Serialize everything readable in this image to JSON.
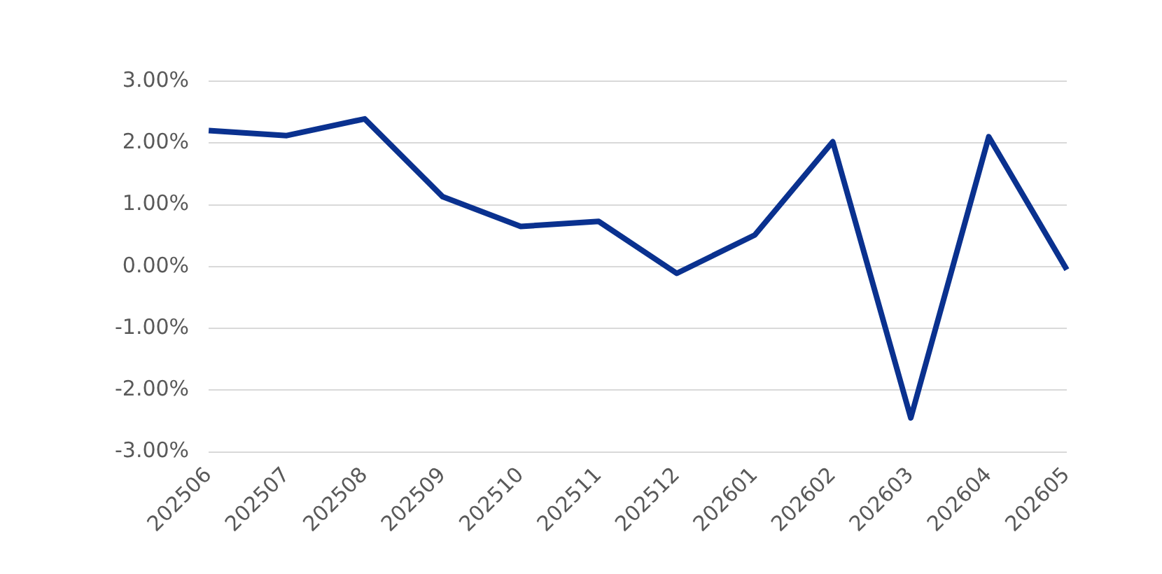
{
  "chart_data": {
    "type": "line",
    "categories": [
      "202506",
      "202507",
      "202508",
      "202509",
      "202510",
      "202511",
      "202512",
      "202601",
      "202602",
      "202603",
      "202604",
      "202605"
    ],
    "series": [
      {
        "color": "#0a318f",
        "values": [
          2.2,
          2.12,
          2.39,
          1.13,
          0.65,
          0.73,
          -0.11,
          0.51,
          2.02,
          -2.45,
          2.1,
          -0.05
        ]
      }
    ],
    "ylim": [
      -3,
      3
    ],
    "yticks": [
      {
        "value": 3,
        "label": "3.00%"
      },
      {
        "value": 2,
        "label": "2.00%"
      },
      {
        "value": 1,
        "label": "1.00%"
      },
      {
        "value": 0,
        "label": "0.00%"
      },
      {
        "value": -1,
        "label": "-1.00%"
      },
      {
        "value": -2,
        "label": "-2.00%"
      },
      {
        "value": -3,
        "label": "-3.00%"
      }
    ],
    "grid": "y",
    "legend": false,
    "marker": "none",
    "line_style": "solid"
  }
}
